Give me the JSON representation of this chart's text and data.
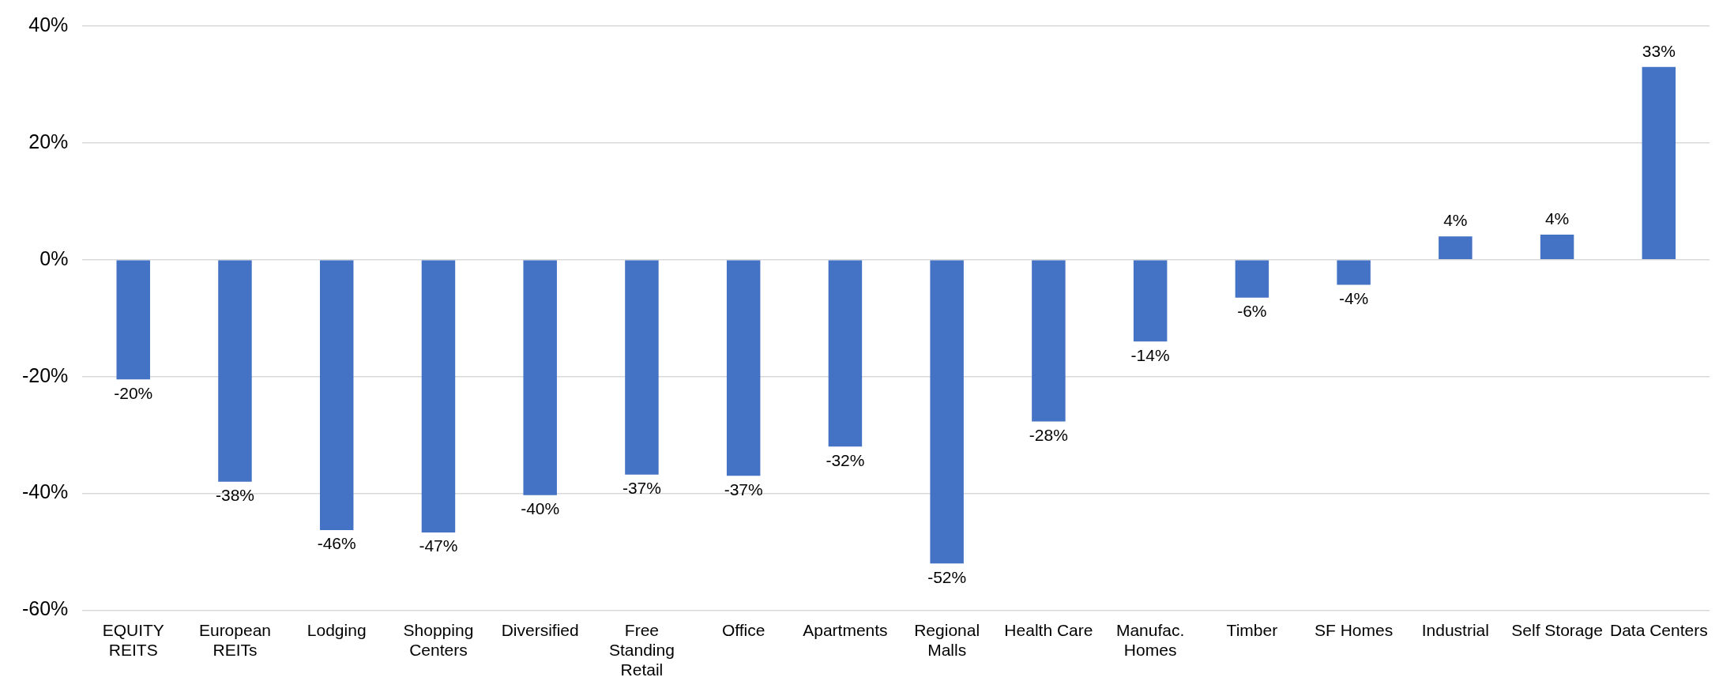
{
  "chart_data": {
    "type": "bar",
    "categories": [
      "EQUITY REITS",
      "European REITs",
      "Lodging",
      "Shopping Centers",
      "Diversified",
      "Free Standing Retail",
      "Office",
      "Apartments",
      "Regional Malls",
      "Health Care",
      "Manufac. Homes",
      "Timber",
      "SF Homes",
      "Industrial",
      "Self Storage",
      "Data Centers"
    ],
    "values": [
      -20.5,
      -38,
      -46.3,
      -46.7,
      -40.3,
      -36.8,
      -37,
      -32,
      -52,
      -27.7,
      -14,
      -6.5,
      -4.3,
      4,
      4.3,
      33
    ],
    "value_labels": [
      "-20%",
      "-38%",
      "-46%",
      "-47%",
      "-40%",
      "-37%",
      "-37%",
      "-32%",
      "-52%",
      "-28%",
      "-14%",
      "-6%",
      "-4%",
      "4%",
      "4%",
      "33%"
    ],
    "color": "#4472c4",
    "ylim": [
      -60,
      40
    ],
    "yticks": [
      {
        "value": -60,
        "label": "-60%"
      },
      {
        "value": -40,
        "label": "-40%"
      },
      {
        "value": -20,
        "label": "-20%"
      },
      {
        "value": 0,
        "label": "0%"
      },
      {
        "value": 20,
        "label": "20%"
      },
      {
        "value": 40,
        "label": "40%"
      }
    ],
    "grid": "y"
  }
}
